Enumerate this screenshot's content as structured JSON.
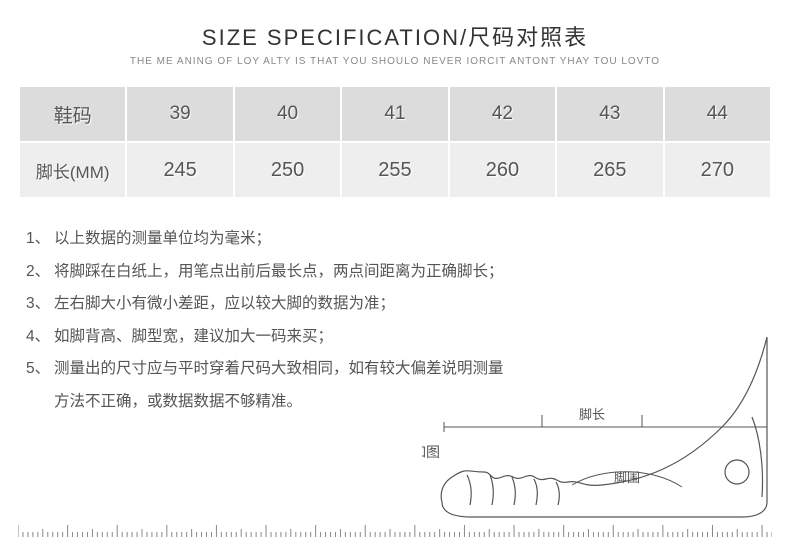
{
  "title": "SIZE SPECIFICATION/尺码对照表",
  "subtitle": "THE ME ANING OF LOY ALTY IS THAT YOU SHOULO NEVER IORCIT ANTONT YHAY TOU LOVTO",
  "table": {
    "header_bg": "#dcdcdc",
    "cell_bg": "#eeeeee",
    "text_color": "#555555",
    "font_size_header": 20,
    "font_size_cell": 20,
    "col_labels": [
      "鞋码",
      "脚长(MM)"
    ],
    "columns": [
      "39",
      "40",
      "41",
      "42",
      "43",
      "44"
    ],
    "row2": [
      "245",
      "250",
      "255",
      "260",
      "265",
      "270"
    ]
  },
  "notes": [
    {
      "n": "1、",
      "text": "以上数据的测量单位均为毫米；"
    },
    {
      "n": "2、",
      "text": "将脚踩在白纸上，用笔点出前后最长点，两点间距离为正确脚长；"
    },
    {
      "n": "3、",
      "text": "左右脚大小有微小差距，应以较大脚的数据为准；"
    },
    {
      "n": "4、",
      "text": "如脚背高、脚型宽，建议加大一码来买；"
    },
    {
      "n": "5、",
      "text": "测量出的尺寸应与平时穿着尺码大致相同，如有较大偏差说明测量"
    },
    {
      "n": "",
      "text": "方法不正确，或数据数据不够精准。"
    }
  ],
  "diagram": {
    "label_foot_length": "脚长",
    "label_foot_girth": "脚围",
    "label_as_shown": "如图",
    "outline_color": "#555555",
    "stroke_width": 1.2
  },
  "ruler": {
    "stroke": "#888888",
    "major_count": 76,
    "minor_per_major": 1
  }
}
